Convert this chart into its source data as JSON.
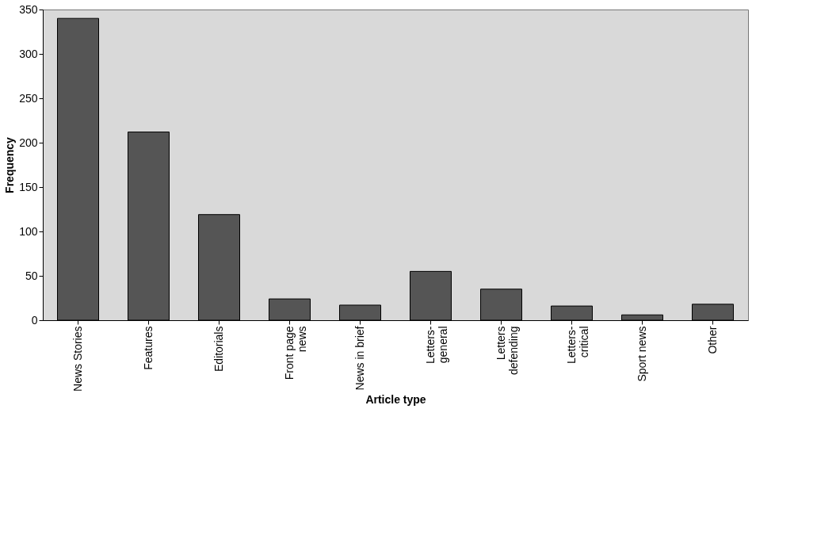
{
  "chart_data": {
    "type": "bar",
    "xlabel": "Article type",
    "ylabel": "Frequency",
    "categories": [
      "News Stories",
      "Features",
      "Editorials",
      "Front page news",
      "News in brief",
      "Letters-general",
      "Letters defending",
      "Letters-critical",
      "Sport news",
      "Other"
    ],
    "values": [
      340,
      212,
      119,
      24,
      17,
      55,
      35,
      16,
      6,
      18
    ],
    "color": "#555555",
    "ylim": [
      0,
      350
    ],
    "yticks": [
      0,
      50,
      100,
      150,
      200,
      250,
      300,
      350
    ],
    "grid": false
  }
}
